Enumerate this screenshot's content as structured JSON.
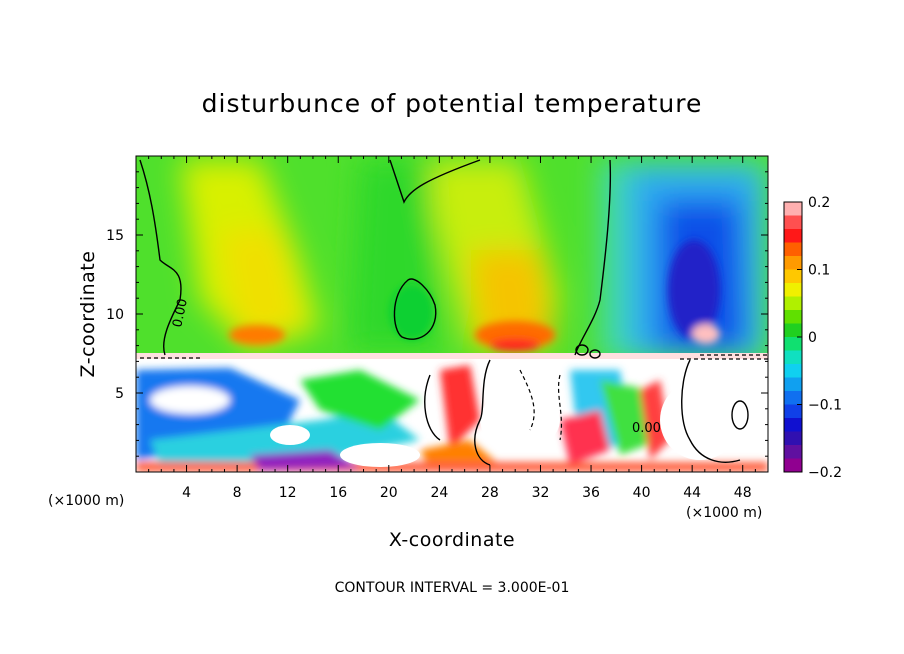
{
  "chart_data": {
    "type": "heatmap",
    "title": "disturbunce of potential temperature",
    "xlabel": "X-coordinate",
    "ylabel": "Z-coordinate",
    "x_unit_label_left": "(×1000 m)",
    "x_unit_label_right": "(×1000 m)",
    "x_range": [
      0,
      50
    ],
    "y_range": [
      0,
      20
    ],
    "x_ticks": [
      4,
      8,
      12,
      16,
      20,
      24,
      28,
      32,
      36,
      40,
      44,
      48
    ],
    "y_ticks": [
      5,
      10,
      15
    ],
    "colorbar": {
      "range": [
        -0.2,
        0.2
      ],
      "tick_values": [
        0.2,
        0.1,
        0,
        -0.1,
        -0.2
      ],
      "tick_labels": [
        "0.2",
        "0.1",
        "0",
        "−0.1",
        "−0.2"
      ]
    },
    "contour_labels": [
      "0.00",
      "0.00"
    ],
    "contour_interval_text": "CONTOUR INTERVAL = 3.000E-01",
    "field_summary": [
      {
        "region": "upper layer x 0-20",
        "value": 0.04
      },
      {
        "region": "upper layer x 20-24",
        "value": 0.0
      },
      {
        "region": "upper layer x 24-35",
        "value": 0.06
      },
      {
        "region": "upper layer x 38-50",
        "value": -0.15
      },
      {
        "region": "near z 8, x 28-33",
        "value": 0.15
      },
      {
        "region": "lower layer z 0-7",
        "value": "mixed, beyond colour range"
      }
    ]
  }
}
